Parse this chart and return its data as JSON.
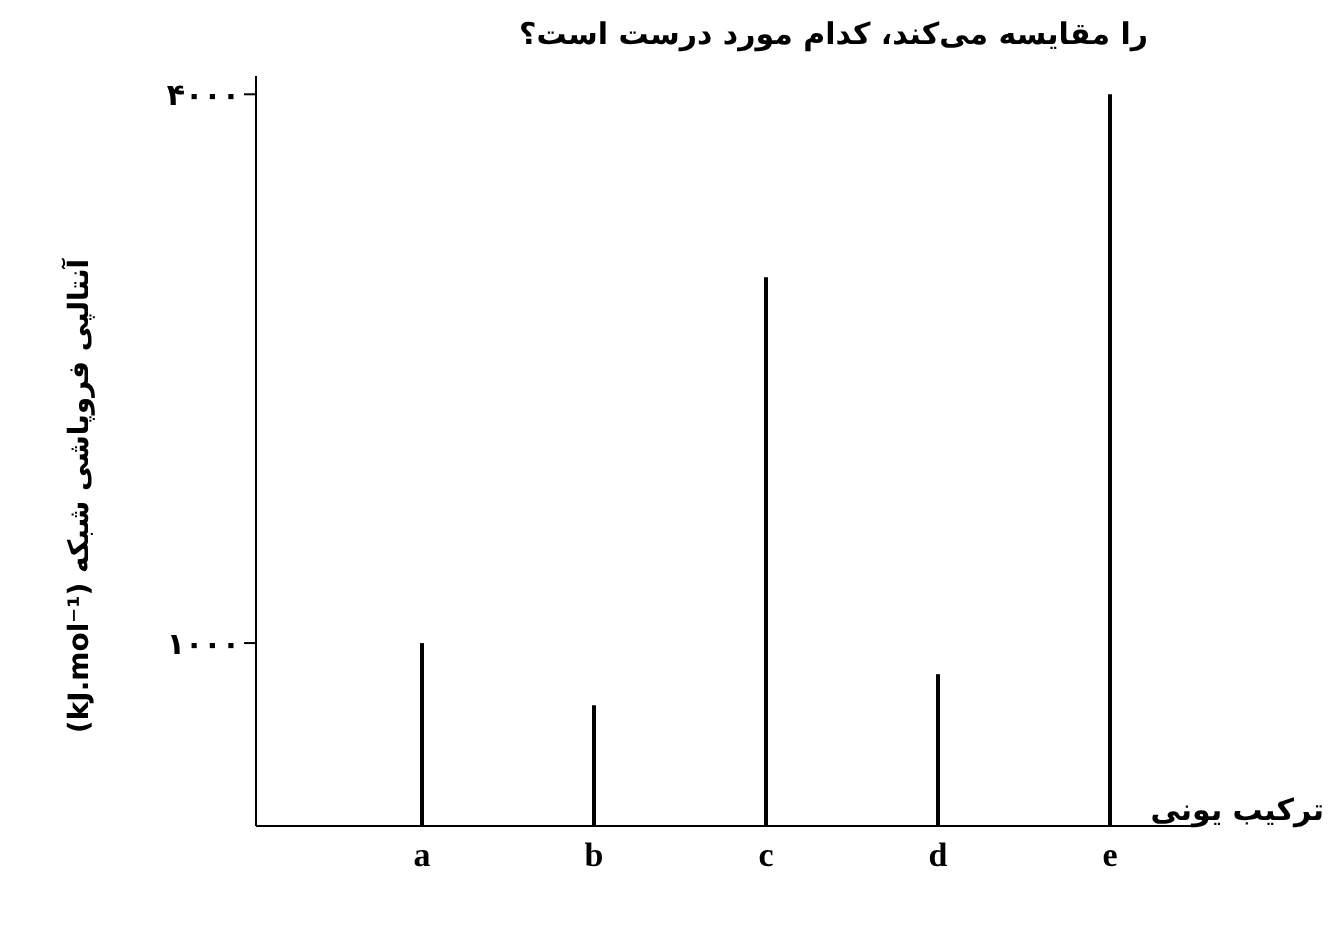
{
  "chart_data": {
    "type": "bar",
    "title": "را مقایسه می‌کند، کدام مورد درست است؟",
    "xlabel": "ترکیب یونی",
    "ylabel": "آنتالپی فروپاشی شبکه (kJ.mol⁻¹)",
    "categories": [
      "a",
      "b",
      "c",
      "d",
      "e"
    ],
    "series": [
      {
        "color": "#000000",
        "values": [
          1000,
          660,
          3000,
          830,
          4000
        ]
      }
    ],
    "ylim": [
      0,
      4100
    ],
    "yticks": [
      {
        "value": 1000,
        "label": "۱۰۰۰"
      },
      {
        "value": 4000,
        "label": "۴۰۰۰"
      }
    ],
    "grid": false,
    "legend": false
  }
}
